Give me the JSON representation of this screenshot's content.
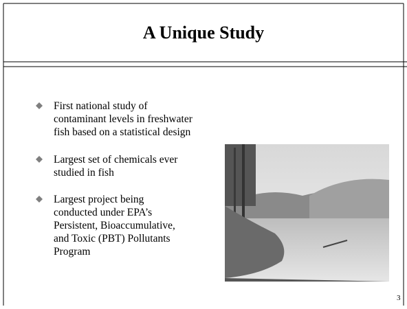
{
  "slide": {
    "title": "A Unique Study",
    "bullets": [
      [
        "First national study of",
        "contaminant levels in freshwater",
        "fish based on a statistical design"
      ],
      [
        "Largest set of chemicals ever",
        "studied in fish"
      ],
      [
        "Largest project being",
        "conducted under EPA’s",
        "Persistent, Bioaccumulative,",
        "and Toxic (PBT) Pollutants",
        "Program"
      ]
    ],
    "page_number": "3"
  }
}
